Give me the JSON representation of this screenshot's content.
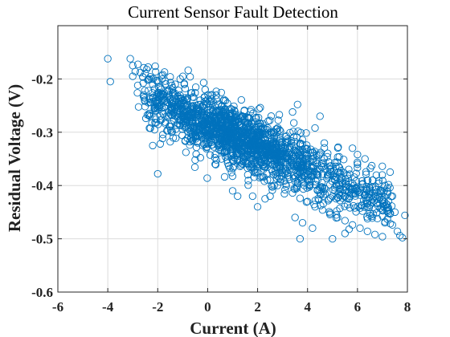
{
  "chart_data": {
    "type": "scatter",
    "title": "Current Sensor Fault Detection",
    "xlabel": "Current (A)",
    "ylabel": "Residual Voltage (V)",
    "xlim": [
      -6,
      8
    ],
    "ylim": [
      -0.6,
      -0.1
    ],
    "xticks": [
      -6,
      -4,
      -2,
      0,
      2,
      4,
      6,
      8
    ],
    "yticks": [
      -0.6,
      -0.5,
      -0.4,
      -0.3,
      -0.2
    ],
    "xtick_labels": [
      "-6",
      "-4",
      "-2",
      "0",
      "2",
      "4",
      "6",
      "8"
    ],
    "ytick_labels": [
      "-0.6",
      "-0.5",
      "-0.4",
      "-0.3",
      "-0.2"
    ],
    "grid": true,
    "marker": "open-circle",
    "color": "#0072BD",
    "series": [
      {
        "trend": {
          "intercept": -0.285,
          "slope": -0.0205
        },
        "points": [
          [
            -4.0,
            -0.162
          ],
          [
            -3.9,
            -0.205
          ],
          [
            -3.1,
            -0.162
          ],
          [
            -3.0,
            -0.175
          ],
          [
            -3.0,
            -0.195
          ],
          [
            -2.9,
            -0.186
          ],
          [
            -2.8,
            -0.212
          ],
          [
            -2.7,
            -0.188
          ],
          [
            -2.6,
            -0.196
          ],
          [
            -2.5,
            -0.19
          ],
          [
            -2.4,
            -0.202
          ],
          [
            -2.3,
            -0.196
          ],
          [
            -2.2,
            -0.21
          ],
          [
            -2.1,
            -0.176
          ],
          [
            -2.0,
            -0.206
          ],
          [
            -1.9,
            -0.215
          ],
          [
            -1.8,
            -0.192
          ],
          [
            -1.8,
            -0.228
          ],
          [
            -1.7,
            -0.204
          ],
          [
            -1.6,
            -0.222
          ],
          [
            -1.5,
            -0.196
          ],
          [
            -1.5,
            -0.238
          ],
          [
            -1.4,
            -0.226
          ],
          [
            -1.3,
            -0.21
          ],
          [
            -1.3,
            -0.248
          ],
          [
            -1.2,
            -0.232
          ],
          [
            -1.1,
            -0.2
          ],
          [
            -1.1,
            -0.256
          ],
          [
            -1.0,
            -0.24
          ],
          [
            -0.9,
            -0.218
          ],
          [
            -0.9,
            -0.262
          ],
          [
            -0.8,
            -0.236
          ],
          [
            -0.7,
            -0.196
          ],
          [
            -0.7,
            -0.27
          ],
          [
            -0.6,
            -0.252
          ],
          [
            -0.5,
            -0.226
          ],
          [
            -0.5,
            -0.282
          ],
          [
            -0.4,
            -0.26
          ],
          [
            -0.3,
            -0.24
          ],
          [
            -0.3,
            -0.29
          ],
          [
            -0.2,
            -0.268
          ],
          [
            -0.1,
            -0.22
          ],
          [
            -0.1,
            -0.3
          ],
          [
            0.0,
            -0.276
          ],
          [
            0.0,
            -0.246
          ],
          [
            0.1,
            -0.304
          ],
          [
            0.2,
            -0.286
          ],
          [
            0.2,
            -0.258
          ],
          [
            0.3,
            -0.314
          ],
          [
            0.4,
            -0.292
          ],
          [
            0.5,
            -0.27
          ],
          [
            0.5,
            -0.322
          ],
          [
            0.6,
            -0.3
          ],
          [
            0.7,
            -0.256
          ],
          [
            0.7,
            -0.336
          ],
          [
            0.8,
            -0.31
          ],
          [
            0.9,
            -0.282
          ],
          [
            1.0,
            -0.34
          ],
          [
            1.0,
            -0.312
          ],
          [
            1.1,
            -0.29
          ],
          [
            1.2,
            -0.35
          ],
          [
            1.3,
            -0.318
          ],
          [
            1.4,
            -0.27
          ],
          [
            1.4,
            -0.36
          ],
          [
            1.5,
            -0.33
          ],
          [
            1.6,
            -0.302
          ],
          [
            1.7,
            -0.366
          ],
          [
            1.8,
            -0.338
          ],
          [
            1.9,
            -0.312
          ],
          [
            2.0,
            -0.376
          ],
          [
            2.0,
            -0.346
          ],
          [
            2.1,
            -0.3
          ],
          [
            2.2,
            -0.384
          ],
          [
            2.3,
            -0.352
          ],
          [
            2.4,
            -0.326
          ],
          [
            2.5,
            -0.39
          ],
          [
            2.6,
            -0.36
          ],
          [
            2.7,
            -0.318
          ],
          [
            2.8,
            -0.4
          ],
          [
            2.9,
            -0.368
          ],
          [
            3.0,
            -0.34
          ],
          [
            3.1,
            -0.408
          ],
          [
            3.2,
            -0.376
          ],
          [
            3.3,
            -0.33
          ],
          [
            3.4,
            -0.414
          ],
          [
            3.5,
            -0.384
          ],
          [
            3.6,
            -0.352
          ],
          [
            3.7,
            -0.424
          ],
          [
            3.8,
            -0.392
          ],
          [
            3.9,
            -0.35
          ],
          [
            4.0,
            -0.43
          ],
          [
            4.1,
            -0.398
          ],
          [
            4.2,
            -0.366
          ],
          [
            4.3,
            -0.44
          ],
          [
            4.4,
            -0.408
          ],
          [
            4.5,
            -0.37
          ],
          [
            4.6,
            -0.446
          ],
          [
            4.7,
            -0.416
          ],
          [
            4.8,
            -0.38
          ],
          [
            4.9,
            -0.452
          ],
          [
            5.0,
            -0.42
          ],
          [
            5.1,
            -0.39
          ],
          [
            5.2,
            -0.46
          ],
          [
            5.3,
            -0.428
          ],
          [
            5.4,
            -0.396
          ],
          [
            5.5,
            -0.466
          ],
          [
            5.6,
            -0.436
          ],
          [
            5.7,
            -0.404
          ],
          [
            5.8,
            -0.474
          ],
          [
            5.9,
            -0.442
          ],
          [
            6.0,
            -0.41
          ],
          [
            6.1,
            -0.48
          ],
          [
            6.2,
            -0.448
          ],
          [
            6.3,
            -0.418
          ],
          [
            6.4,
            -0.486
          ],
          [
            6.5,
            -0.456
          ],
          [
            6.6,
            -0.426
          ],
          [
            6.7,
            -0.492
          ],
          [
            6.8,
            -0.462
          ],
          [
            6.9,
            -0.434
          ],
          [
            7.0,
            -0.496
          ],
          [
            7.1,
            -0.468
          ],
          [
            7.2,
            -0.442
          ],
          [
            7.3,
            -0.404
          ],
          [
            7.4,
            -0.474
          ],
          [
            7.5,
            -0.45
          ],
          [
            7.6,
            -0.486
          ],
          [
            7.7,
            -0.494
          ],
          [
            7.8,
            -0.498
          ],
          [
            7.9,
            -0.456
          ],
          [
            -2.2,
            -0.325
          ],
          [
            -2.0,
            -0.378
          ],
          [
            -1.9,
            -0.322
          ],
          [
            -1.5,
            -0.318
          ],
          [
            -0.5,
            -0.352
          ],
          [
            -0.4,
            -0.32
          ],
          [
            0.3,
            -0.36
          ],
          [
            0.8,
            -0.358
          ],
          [
            1.0,
            -0.41
          ],
          [
            1.2,
            -0.42
          ],
          [
            1.8,
            -0.42
          ],
          [
            2.0,
            -0.44
          ],
          [
            2.5,
            -0.42
          ],
          [
            3.5,
            -0.46
          ],
          [
            3.8,
            -0.47
          ],
          [
            4.2,
            -0.48
          ],
          [
            5.0,
            -0.5
          ],
          [
            5.5,
            -0.49
          ],
          [
            3.7,
            -0.5
          ],
          [
            2.3,
            -0.425
          ],
          [
            -1.1,
            -0.236
          ],
          [
            -0.2,
            -0.252
          ],
          [
            0.6,
            -0.262
          ],
          [
            1.6,
            -0.282
          ],
          [
            3.4,
            -0.262
          ],
          [
            3.6,
            -0.248
          ],
          [
            4.3,
            -0.292
          ],
          [
            4.5,
            -0.27
          ],
          [
            5.8,
            -0.33
          ],
          [
            6.0,
            -0.36
          ],
          [
            6.3,
            -0.35
          ],
          [
            6.6,
            -0.39
          ],
          [
            7.1,
            -0.4
          ],
          [
            7.4,
            -0.42
          ]
        ]
      }
    ]
  }
}
